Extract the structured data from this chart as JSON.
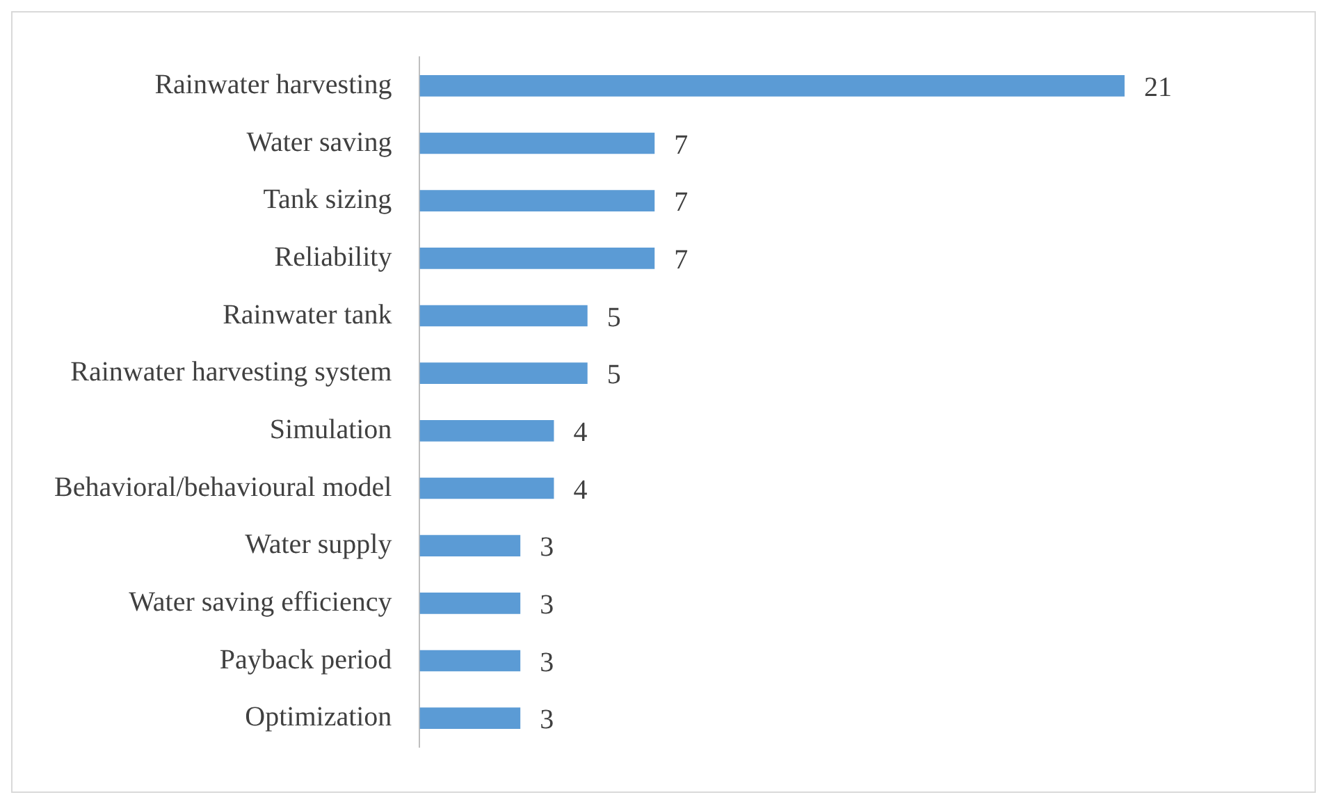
{
  "chart_data": {
    "type": "bar",
    "orientation": "horizontal",
    "categories": [
      "Rainwater harvesting",
      "Water saving",
      "Tank sizing",
      "Reliability",
      "Rainwater tank",
      "Rainwater harvesting system",
      "Simulation",
      "Behavioral/behavioural model",
      "Water supply",
      "Water saving efficiency",
      "Payback period",
      "Optimization"
    ],
    "values": [
      21,
      7,
      7,
      7,
      5,
      5,
      4,
      4,
      3,
      3,
      3,
      3
    ],
    "color": "#5b9bd5",
    "data_labels": true,
    "grid": false,
    "legend": false,
    "tick_labels": "y"
  }
}
